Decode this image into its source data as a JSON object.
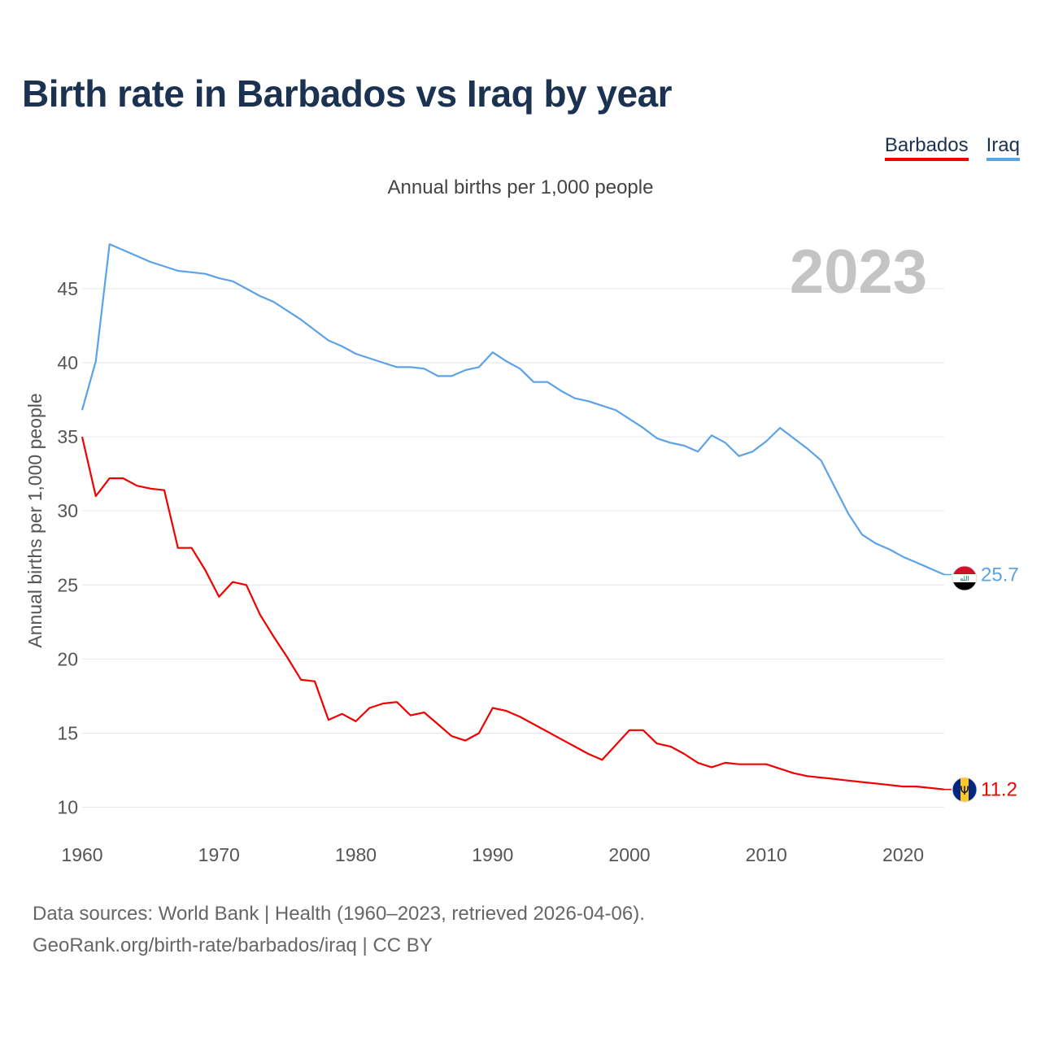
{
  "header": {
    "title": "Birth rate in Barbados vs Iraq by year",
    "subtitle": "Annual births per 1,000 people"
  },
  "legend": [
    {
      "name": "Barbados",
      "color": "#f00000"
    },
    {
      "name": "Iraq",
      "color": "#5ba3e6"
    }
  ],
  "footer": {
    "line1": "Data sources: World Bank | Health (1960–2023, retrieved 2026-04-06).",
    "line2": "GeoRank.org/birth-rate/barbados/iraq | CC BY"
  },
  "chart_data": {
    "type": "line",
    "title": "Birth rate in Barbados vs Iraq by year",
    "ylabel": "Annual births per 1,000 people",
    "xlabel": "",
    "year_watermark": "2023",
    "xlim": [
      1960,
      2023
    ],
    "ylim": [
      8,
      49
    ],
    "x_ticks": [
      1960,
      1970,
      1980,
      1990,
      2000,
      2010,
      2020
    ],
    "y_ticks": [
      10,
      15,
      20,
      25,
      30,
      35,
      40,
      45
    ],
    "x": [
      1960,
      1961,
      1962,
      1963,
      1964,
      1965,
      1966,
      1967,
      1968,
      1969,
      1970,
      1971,
      1972,
      1973,
      1974,
      1975,
      1976,
      1977,
      1978,
      1979,
      1980,
      1981,
      1982,
      1983,
      1984,
      1985,
      1986,
      1987,
      1988,
      1989,
      1990,
      1991,
      1992,
      1993,
      1994,
      1995,
      1996,
      1997,
      1998,
      1999,
      2000,
      2001,
      2002,
      2003,
      2004,
      2005,
      2006,
      2007,
      2008,
      2009,
      2010,
      2011,
      2012,
      2013,
      2014,
      2015,
      2016,
      2017,
      2018,
      2019,
      2020,
      2021,
      2022,
      2023
    ],
    "series": [
      {
        "name": "Iraq",
        "color": "#5ba3e6",
        "end_label": "25.7",
        "values": [
          36.8,
          40.1,
          48.0,
          47.6,
          47.2,
          46.8,
          46.5,
          46.2,
          46.1,
          46.0,
          45.7,
          45.5,
          45.0,
          44.5,
          44.1,
          43.5,
          42.9,
          42.2,
          41.5,
          41.1,
          40.6,
          40.3,
          40.0,
          39.7,
          39.7,
          39.6,
          39.1,
          39.1,
          39.5,
          39.7,
          40.7,
          40.1,
          39.6,
          38.7,
          38.7,
          38.1,
          37.6,
          37.4,
          37.1,
          36.8,
          36.2,
          35.6,
          34.9,
          34.6,
          34.4,
          34.0,
          35.1,
          34.6,
          33.7,
          34.0,
          34.7,
          35.6,
          34.9,
          34.2,
          33.4,
          31.6,
          29.8,
          28.4,
          27.8,
          27.4,
          26.9,
          26.5,
          26.1,
          25.7
        ]
      },
      {
        "name": "Barbados",
        "color": "#f00000",
        "end_label": "11.2",
        "values": [
          35.0,
          31.0,
          32.2,
          32.2,
          31.7,
          31.5,
          31.4,
          27.5,
          27.5,
          26.0,
          24.2,
          25.2,
          25.0,
          23.0,
          21.5,
          20.1,
          18.6,
          18.5,
          15.9,
          16.3,
          15.8,
          16.7,
          17.0,
          17.1,
          16.2,
          16.4,
          15.6,
          14.8,
          14.5,
          15.0,
          16.7,
          16.5,
          16.1,
          15.6,
          15.1,
          14.6,
          14.1,
          13.6,
          13.2,
          14.2,
          15.2,
          15.2,
          14.3,
          14.1,
          13.6,
          13.0,
          12.7,
          13.0,
          12.9,
          12.9,
          12.9,
          12.6,
          12.3,
          12.1,
          12.0,
          11.9,
          11.8,
          11.7,
          11.6,
          11.5,
          11.4,
          11.4,
          11.3,
          11.2
        ]
      }
    ]
  }
}
